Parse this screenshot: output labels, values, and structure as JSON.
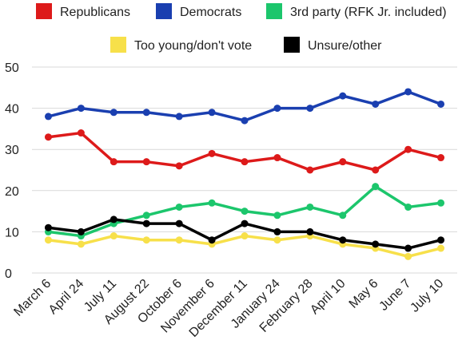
{
  "chart_data": {
    "type": "line",
    "title": "",
    "xlabel": "",
    "ylabel": "",
    "ylim": [
      0,
      50
    ],
    "yticks": [
      0,
      10,
      20,
      30,
      40,
      50
    ],
    "grid": true,
    "legend_position": "top",
    "categories": [
      "March 6",
      "April 24",
      "July 11",
      "August 22",
      "October 6",
      "November 6",
      "December 11",
      "January 24",
      "February 28",
      "April 10",
      "May 6",
      "June 7",
      "July 10"
    ],
    "series": [
      {
        "name": "Republicans",
        "color": "#dd1a1a",
        "values": [
          33,
          34,
          27,
          27,
          26,
          29,
          27,
          28,
          25,
          27,
          25,
          30,
          28
        ]
      },
      {
        "name": "Democrats",
        "color": "#1a3fb0",
        "values": [
          38,
          40,
          39,
          39,
          38,
          39,
          37,
          40,
          40,
          43,
          41,
          44,
          41
        ]
      },
      {
        "name": "3rd party (RFK Jr. included)",
        "color": "#1cc66c",
        "values": [
          10,
          9,
          12,
          14,
          16,
          17,
          15,
          14,
          16,
          14,
          21,
          16,
          17
        ]
      },
      {
        "name": "Too young/don't vote",
        "color": "#f7e04a",
        "values": [
          8,
          7,
          9,
          8,
          8,
          7,
          9,
          8,
          9,
          7,
          6,
          4,
          6
        ]
      },
      {
        "name": "Unsure/other",
        "color": "#000000",
        "values": [
          11,
          10,
          13,
          12,
          12,
          8,
          12,
          10,
          10,
          8,
          7,
          6,
          8
        ]
      }
    ]
  }
}
